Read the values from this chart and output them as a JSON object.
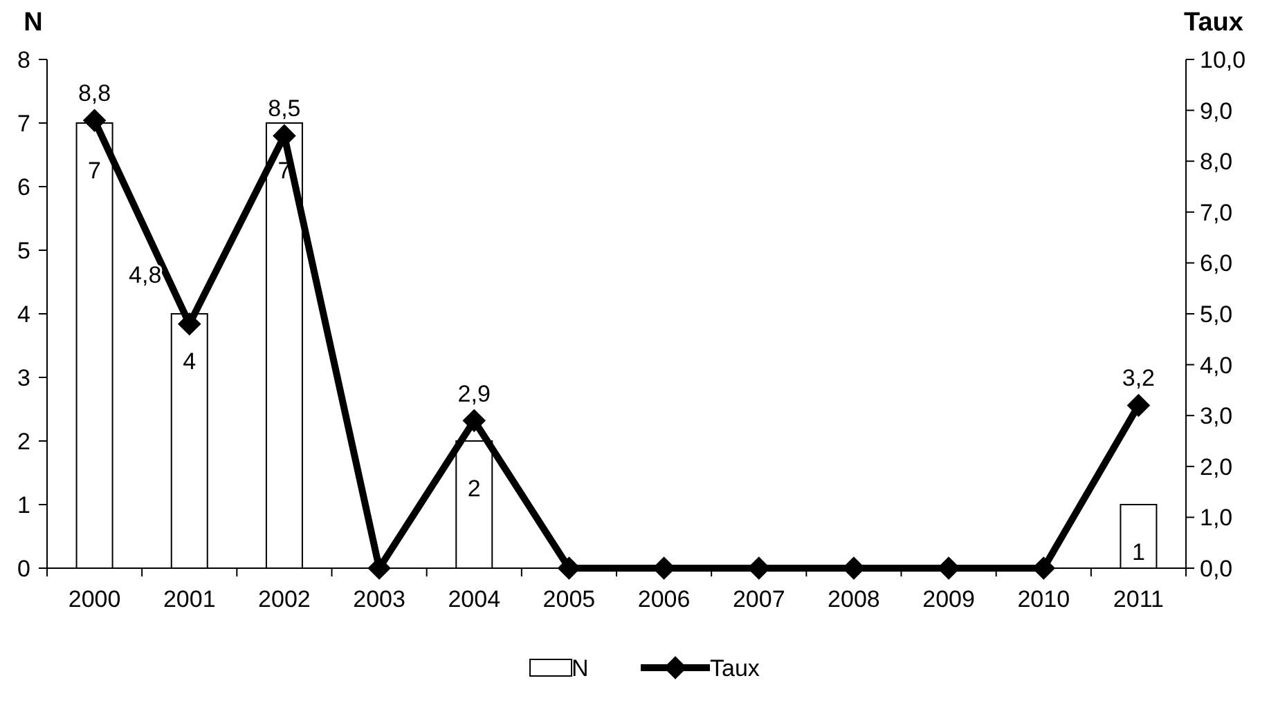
{
  "chart_data": {
    "type": "bar",
    "ylabel": "N",
    "y2label": "Taux",
    "categories": [
      "2000",
      "2001",
      "2002",
      "2003",
      "2004",
      "2005",
      "2006",
      "2007",
      "2008",
      "2009",
      "2010",
      "2011"
    ],
    "series": [
      {
        "name": "N",
        "color": "#ffffff",
        "values": [
          7,
          4,
          7,
          0,
          2,
          0,
          0,
          0,
          0,
          0,
          0,
          1
        ],
        "value_labels": [
          "7",
          "4",
          "7",
          null,
          "2",
          null,
          null,
          null,
          null,
          null,
          null,
          "1"
        ]
      },
      {
        "name": "Taux",
        "type": "line",
        "axis": "y2",
        "color": "#000000",
        "values": [
          8.8,
          4.8,
          8.5,
          0,
          2.9,
          0,
          0,
          0,
          0,
          0,
          0,
          3.2
        ],
        "value_labels": [
          "8,8",
          "4,8",
          "8,5",
          null,
          "2,9",
          null,
          null,
          null,
          null,
          null,
          null,
          "3,2"
        ]
      }
    ],
    "ylim": [
      0,
      8
    ],
    "yticks": [
      0,
      1,
      2,
      3,
      4,
      5,
      6,
      7,
      8
    ],
    "y2lim": [
      0,
      10
    ],
    "y2ticks": [
      {
        "value": 0,
        "label": "0,0"
      },
      {
        "value": 1,
        "label": "1,0"
      },
      {
        "value": 2,
        "label": "2,0"
      },
      {
        "value": 3,
        "label": "3,0"
      },
      {
        "value": 4,
        "label": "4,0"
      },
      {
        "value": 5,
        "label": "5,0"
      },
      {
        "value": 6,
        "label": "6,0"
      },
      {
        "value": 7,
        "label": "7,0"
      },
      {
        "value": 8,
        "label": "8,0"
      },
      {
        "value": 9,
        "label": "9,0"
      },
      {
        "value": 10,
        "label": "10,0"
      }
    ],
    "grid": false,
    "legend": "bottom",
    "marker": "diamond",
    "line_style": "solid"
  }
}
